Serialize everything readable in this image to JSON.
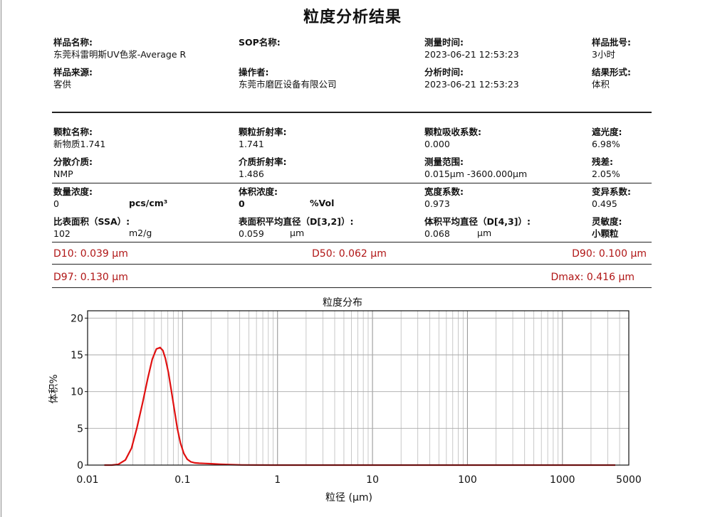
{
  "report": {
    "title": "粒度分析结果",
    "section1": {
      "sample_name": {
        "label": "样品名称:",
        "value": "东莞科雷明斯UV色浆-Average R"
      },
      "sop_name": {
        "label": "SOP名称:",
        "value": ""
      },
      "measure_time": {
        "label": "测量时间:",
        "value": "2023-06-21 12:53:23"
      },
      "batch_no": {
        "label": "样品批号:",
        "value": "3小时"
      },
      "sample_source": {
        "label": "样品来源:",
        "value": "客供"
      },
      "operator": {
        "label": "操作者:",
        "value": "东莞市磨匠设备有限公司"
      },
      "analysis_time": {
        "label": "分析时间:",
        "value": "2023-06-21 12:53:23"
      },
      "result_form": {
        "label": "结果形式:",
        "value": "体积"
      }
    },
    "section2": {
      "particle_name": {
        "label": "颗粒名称:",
        "value": "新物质1.741"
      },
      "particle_ri": {
        "label": "颗粒折射率:",
        "value": "1.741"
      },
      "particle_abs": {
        "label": "颗粒吸收系数:",
        "value": "0.000"
      },
      "obscuration": {
        "label": "遮光度:",
        "value": "6.98%"
      },
      "dispersant": {
        "label": "分散介质:",
        "value": "NMP"
      },
      "medium_ri": {
        "label": "介质折射率:",
        "value": "1.486"
      },
      "range": {
        "label": "测量范围:",
        "value": "0.015μm -3600.000μm"
      },
      "residual": {
        "label": "残差:",
        "value": "2.05%"
      },
      "number_conc": {
        "label": "数量浓度:",
        "value": "0",
        "unit": "pcs/cm³"
      },
      "volume_conc": {
        "label": "体积浓度:",
        "value": "0",
        "unit": "%Vol"
      },
      "span": {
        "label": "宽度系数:",
        "value": "0.973"
      },
      "uniformity": {
        "label": "变异系数:",
        "value": "0.495"
      },
      "ssa": {
        "label": "比表面积（SSA）:",
        "value": "102",
        "unit": "m2/g"
      },
      "d32": {
        "label": "表面积平均直径（D[3,2]）:",
        "value": "0.059",
        "unit": "μm"
      },
      "d43": {
        "label": "体积平均直径（D[4,3]）:",
        "value": "0.068",
        "unit": "μm"
      },
      "sensitivity": {
        "label": "灵敏度:",
        "value": "小颗粒"
      }
    },
    "dvalues": {
      "d10": "D10: 0.039 μm",
      "d50": "D50: 0.062 μm",
      "d90": "D90: 0.100 μm",
      "d97": "D97:  0.130 μm",
      "dmax": "Dmax:  0.416 μm"
    }
  },
  "chart_data": {
    "type": "line",
    "title": "粒度分布",
    "xlabel": "粒径 (μm)",
    "ylabel": "体积%",
    "x_scale": "log",
    "xlim": [
      0.01,
      5000
    ],
    "ylim": [
      0,
      21
    ],
    "x_ticks": [
      "0.01",
      "0.1",
      "1",
      "10",
      "100",
      "1000",
      "5000"
    ],
    "y_ticks": [
      "0",
      "5",
      "10",
      "15",
      "20"
    ],
    "grid": true,
    "line_color": "#e01010",
    "series": [
      {
        "x": [
          0.015,
          0.018,
          0.021,
          0.025,
          0.029,
          0.033,
          0.038,
          0.043,
          0.048,
          0.053,
          0.058,
          0.062,
          0.066,
          0.071,
          0.076,
          0.082,
          0.088,
          0.095,
          0.103,
          0.112,
          0.122,
          0.135,
          0.15,
          0.17,
          0.2,
          0.25,
          0.32,
          0.42,
          1,
          10,
          100,
          1000,
          3600
        ],
        "values": [
          0,
          0,
          0.1,
          0.7,
          2.3,
          5.0,
          8.5,
          11.8,
          14.4,
          15.8,
          16.0,
          15.6,
          14.5,
          12.6,
          10.2,
          7.5,
          5.0,
          3.0,
          1.6,
          0.8,
          0.45,
          0.3,
          0.25,
          0.22,
          0.18,
          0.12,
          0.06,
          0.02,
          0,
          0,
          0,
          0,
          0
        ]
      }
    ]
  }
}
